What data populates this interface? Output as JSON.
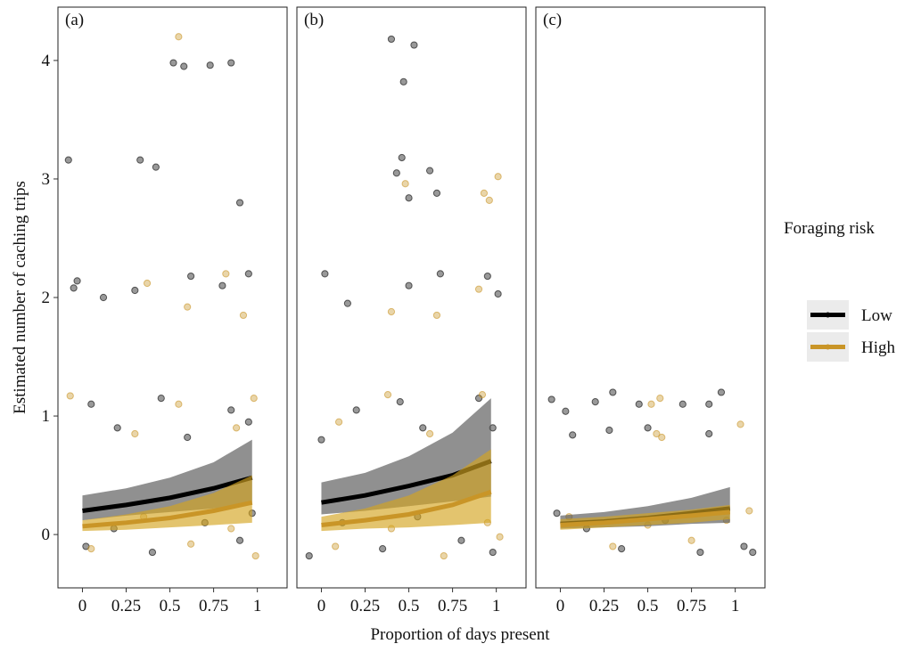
{
  "chart_data": {
    "type": "scatter",
    "xlabel": "Proportion of days present",
    "ylabel": "Estimated number of caching trips",
    "legend_title": "Foraging risk",
    "xlim": [
      -0.14,
      1.17
    ],
    "ylim": [
      -0.45,
      4.45
    ],
    "xticks": [
      0,
      0.25,
      0.5,
      0.75,
      1
    ],
    "yticks": [
      0,
      1,
      2,
      3,
      4
    ],
    "panels": [
      {
        "label": "(a)"
      },
      {
        "label": "(b)"
      },
      {
        "label": "(c)"
      }
    ],
    "series": [
      {
        "name": "Low",
        "color": "#000000",
        "ribbon_color": "#555555",
        "panels": [
          {
            "x": [
              -0.08,
              -0.05,
              -0.03,
              0.12,
              0.33,
              0.42,
              0.52,
              0.58,
              0.73,
              0.85,
              0.9,
              0.3,
              0.62,
              0.8,
              0.95,
              0.05,
              0.2,
              0.45,
              0.6,
              0.85,
              0.95,
              0.02,
              0.18,
              0.4,
              0.7,
              0.9,
              0.97
            ],
            "y": [
              3.16,
              2.08,
              2.14,
              2.0,
              3.16,
              3.1,
              3.98,
              3.95,
              3.96,
              3.98,
              2.8,
              2.06,
              2.18,
              2.1,
              2.2,
              1.1,
              0.9,
              1.15,
              0.82,
              1.05,
              0.95,
              -0.1,
              0.05,
              -0.15,
              0.1,
              -0.05,
              0.18
            ],
            "fit": {
              "x": [
                0,
                0.25,
                0.5,
                0.75,
                0.97
              ],
              "y": [
                0.2,
                0.25,
                0.31,
                0.39,
                0.48
              ],
              "lower": [
                0.12,
                0.16,
                0.19,
                0.22,
                0.25
              ],
              "upper": [
                0.33,
                0.39,
                0.48,
                0.61,
                0.8
              ]
            }
          },
          {
            "x": [
              0.4,
              0.53,
              0.47,
              0.43,
              0.46,
              0.62,
              0.66,
              0.5,
              0.02,
              0.15,
              0.5,
              0.68,
              0.95,
              1.01,
              0.0,
              0.2,
              0.45,
              0.58,
              0.9,
              0.98,
              -0.07,
              0.12,
              0.35,
              0.55,
              0.8,
              0.98
            ],
            "y": [
              4.18,
              4.13,
              3.82,
              3.05,
              3.18,
              3.07,
              2.88,
              2.84,
              2.2,
              1.95,
              2.1,
              2.2,
              2.18,
              2.03,
              0.8,
              1.05,
              1.12,
              0.9,
              1.15,
              0.9,
              -0.18,
              0.1,
              -0.12,
              0.15,
              -0.05,
              -0.15
            ],
            "fit": {
              "x": [
                0,
                0.25,
                0.5,
                0.75,
                0.97
              ],
              "y": [
                0.27,
                0.33,
                0.41,
                0.5,
                0.62
              ],
              "lower": [
                0.17,
                0.2,
                0.24,
                0.28,
                0.32
              ],
              "upper": [
                0.44,
                0.52,
                0.66,
                0.86,
                1.15
              ]
            }
          },
          {
            "x": [
              -0.05,
              0.03,
              0.3,
              0.2,
              0.45,
              0.5,
              0.7,
              0.85,
              0.92,
              0.85,
              0.07,
              0.28,
              -0.02,
              0.15,
              0.35,
              0.6,
              0.8,
              1.05,
              1.1
            ],
            "y": [
              1.14,
              1.04,
              1.2,
              1.12,
              1.1,
              0.9,
              1.1,
              1.1,
              1.2,
              0.85,
              0.84,
              0.88,
              0.18,
              0.05,
              -0.12,
              0.12,
              -0.15,
              -0.1,
              -0.15
            ],
            "fit": {
              "x": [
                0,
                0.25,
                0.5,
                0.75,
                0.97
              ],
              "y": [
                0.09,
                0.11,
                0.14,
                0.18,
                0.22
              ],
              "lower": [
                0.05,
                0.06,
                0.07,
                0.09,
                0.1
              ],
              "upper": [
                0.16,
                0.19,
                0.24,
                0.31,
                0.4
              ]
            }
          }
        ]
      },
      {
        "name": "High",
        "color": "#c99527",
        "ribbon_color": "#d4a521",
        "panels": [
          {
            "x": [
              0.55,
              0.37,
              0.6,
              0.82,
              0.92,
              -0.07,
              0.3,
              0.55,
              0.88,
              0.98,
              0.05,
              0.35,
              0.62,
              0.85,
              0.99
            ],
            "y": [
              4.2,
              2.12,
              1.92,
              2.2,
              1.85,
              1.17,
              0.85,
              1.1,
              0.9,
              1.15,
              -0.12,
              0.15,
              -0.08,
              0.05,
              -0.18
            ],
            "fit": {
              "x": [
                0,
                0.25,
                0.5,
                0.75,
                0.97
              ],
              "y": [
                0.07,
                0.1,
                0.14,
                0.2,
                0.27
              ],
              "lower": [
                0.03,
                0.04,
                0.06,
                0.08,
                0.1
              ],
              "upper": [
                0.12,
                0.17,
                0.24,
                0.35,
                0.5
              ]
            }
          },
          {
            "x": [
              0.93,
              0.96,
              1.01,
              0.48,
              0.4,
              0.66,
              0.9,
              0.38,
              0.1,
              0.62,
              0.92,
              0.08,
              0.4,
              0.7,
              0.95,
              1.02
            ],
            "y": [
              2.88,
              2.82,
              3.02,
              2.96,
              1.88,
              1.85,
              2.07,
              1.18,
              0.95,
              0.85,
              1.18,
              -0.1,
              0.05,
              -0.18,
              0.1,
              -0.02
            ],
            "fit": {
              "x": [
                0,
                0.25,
                0.5,
                0.75,
                0.97
              ],
              "y": [
                0.08,
                0.12,
                0.17,
                0.25,
                0.36
              ],
              "lower": [
                0.03,
                0.05,
                0.06,
                0.08,
                0.1
              ],
              "upper": [
                0.15,
                0.22,
                0.33,
                0.5,
                0.72
              ]
            }
          },
          {
            "x": [
              0.52,
              0.57,
              0.55,
              0.58,
              1.03,
              0.05,
              0.3,
              0.5,
              0.75,
              0.95,
              1.08
            ],
            "y": [
              1.1,
              1.15,
              0.85,
              0.82,
              0.93,
              0.15,
              -0.1,
              0.08,
              -0.05,
              0.12,
              0.2
            ],
            "fit": {
              "x": [
                0,
                0.25,
                0.5,
                0.75,
                0.97
              ],
              "y": [
                0.08,
                0.1,
                0.13,
                0.16,
                0.19
              ],
              "lower": [
                0.04,
                0.06,
                0.08,
                0.1,
                0.13
              ],
              "upper": [
                0.13,
                0.15,
                0.18,
                0.21,
                0.25
              ]
            }
          }
        ]
      }
    ]
  }
}
